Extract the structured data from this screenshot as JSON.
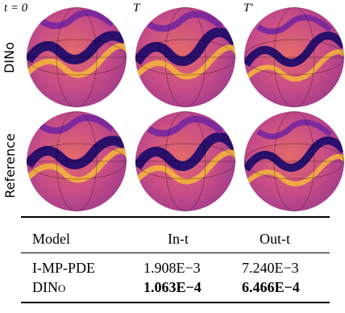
{
  "figure": {
    "column_labels": [
      "t = 0",
      "T",
      "T′"
    ],
    "row_labels": [
      "DINo",
      "Reference"
    ],
    "colormap": [
      "#f3b33d",
      "#e36a5a",
      "#c24f87",
      "#7f2a9c",
      "#2a0f6b"
    ]
  },
  "table": {
    "headers": [
      "Model",
      "In-t",
      "Out-t"
    ],
    "rows": [
      {
        "model": "I-MP-PDE",
        "in_t": "1.908E−3",
        "out_t": "7.240E−3",
        "bold": false
      },
      {
        "model": "DINo",
        "in_t": "1.063E−4",
        "out_t": "6.466E−4",
        "bold": true
      }
    ]
  }
}
